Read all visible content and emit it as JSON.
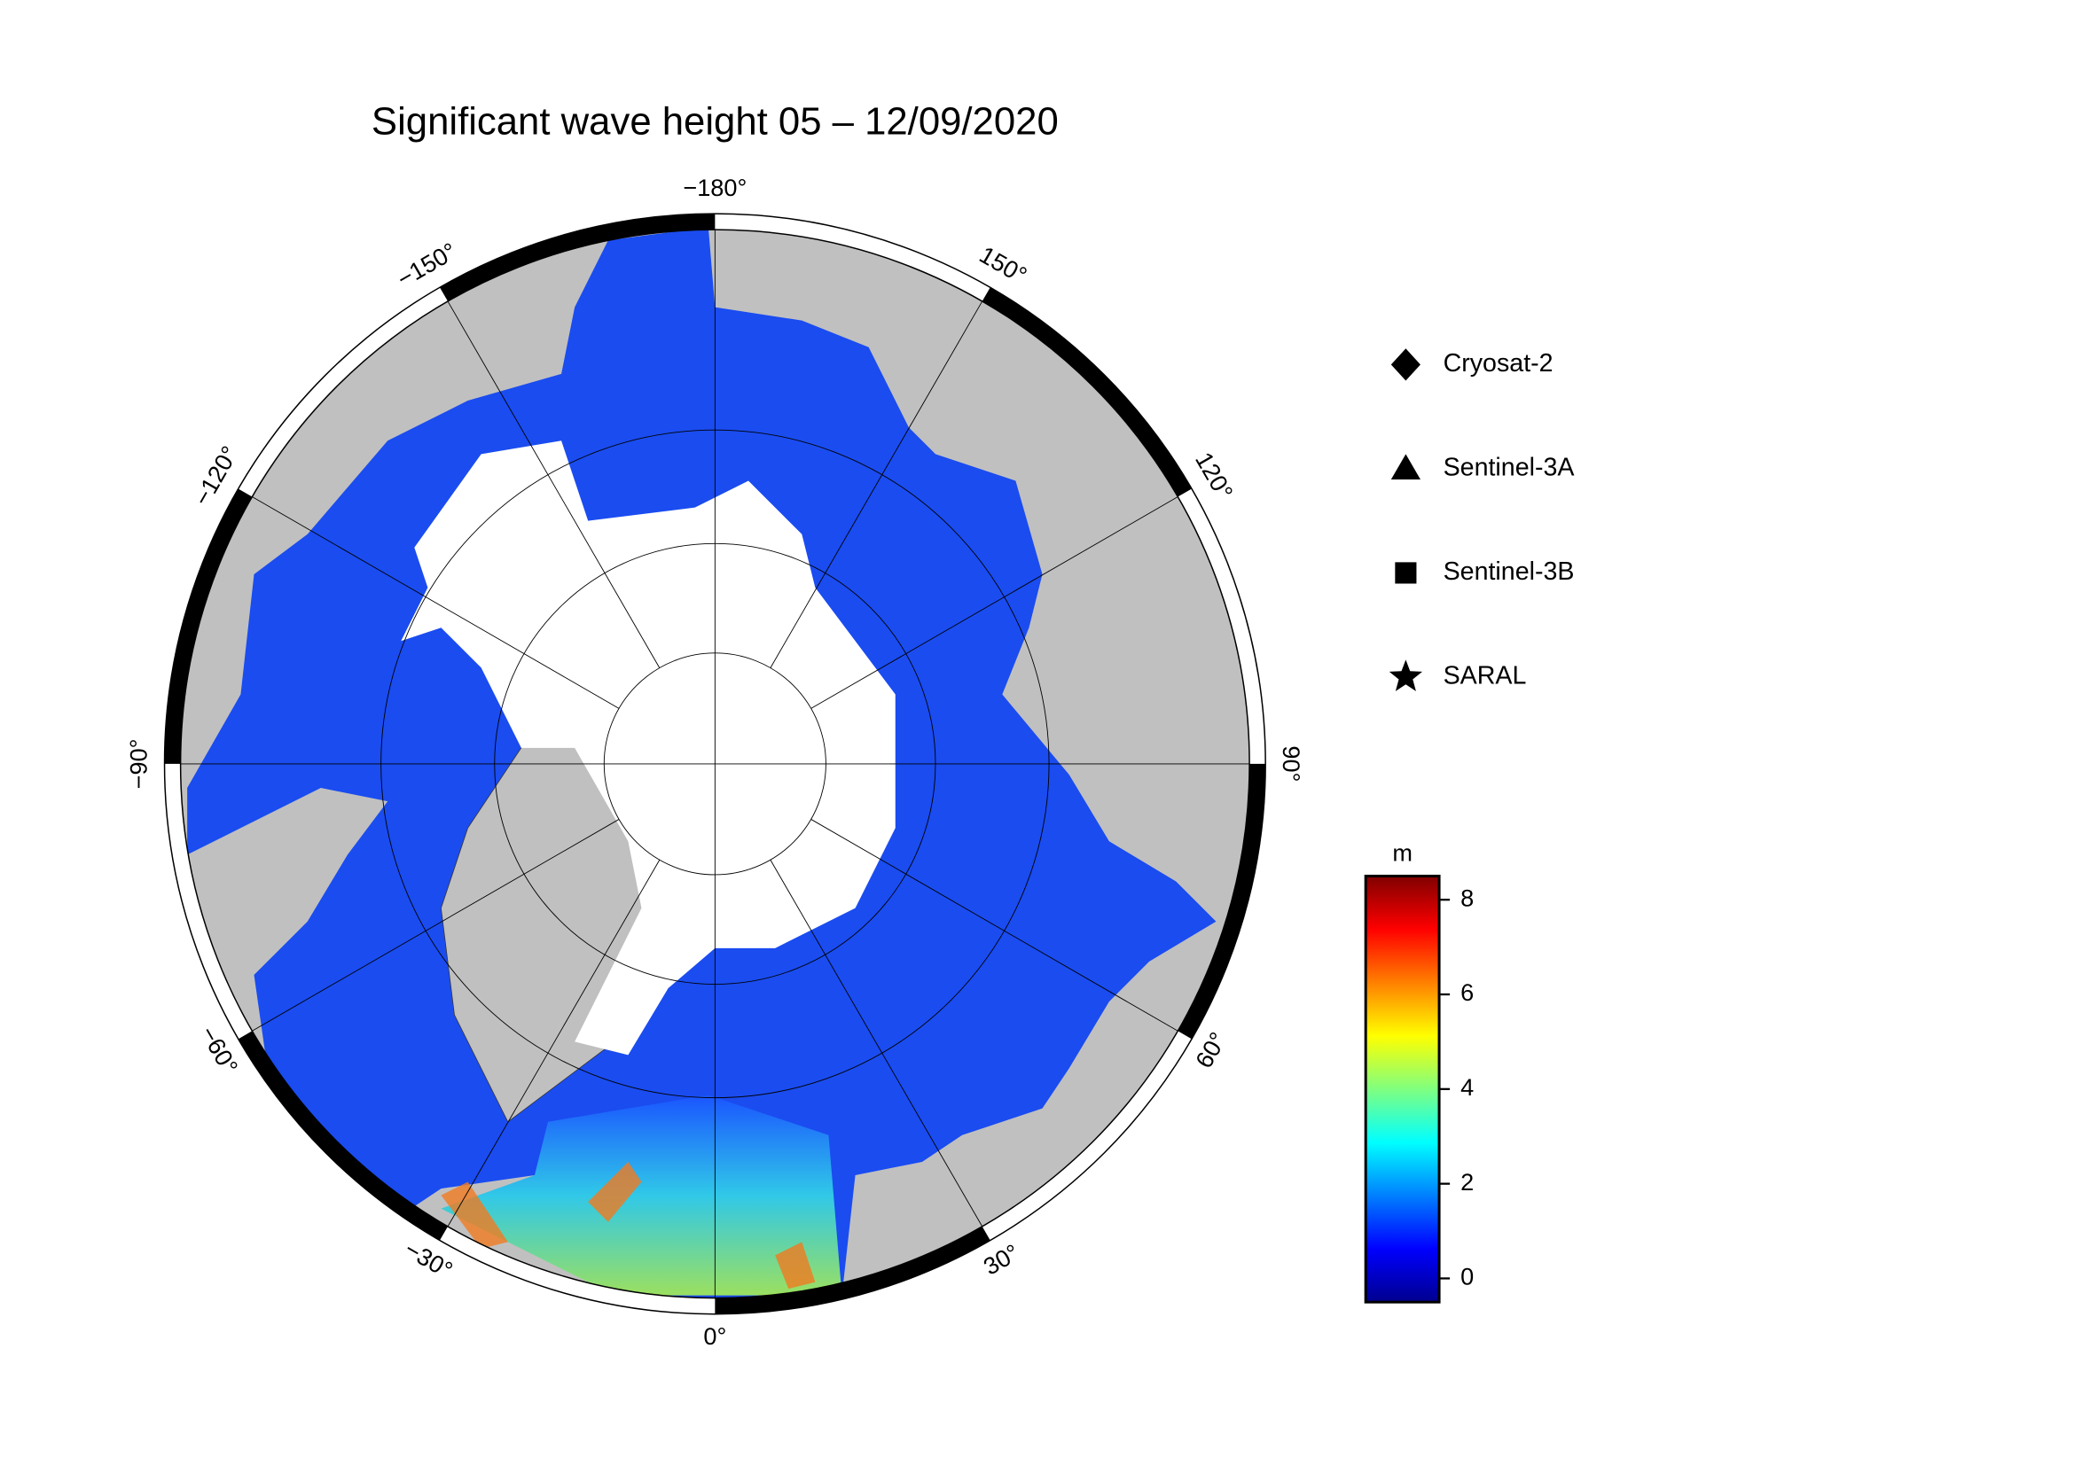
{
  "title": "Significant wave height 05 – 12/09/2020",
  "longitudes": [
    {
      "value": -180,
      "label": "−180°"
    },
    {
      "value": 150,
      "label": "150°"
    },
    {
      "value": 120,
      "label": "120°"
    },
    {
      "value": 90,
      "label": "90°"
    },
    {
      "value": 60,
      "label": "60°"
    },
    {
      "value": 30,
      "label": "30°"
    },
    {
      "value": 0,
      "label": "0°"
    },
    {
      "value": -30,
      "label": "−30°"
    },
    {
      "value": -60,
      "label": "−60°"
    },
    {
      "value": -90,
      "label": "−90°"
    },
    {
      "value": -120,
      "label": "−120°"
    },
    {
      "value": -150,
      "label": "−150°"
    }
  ],
  "legend": [
    {
      "label": "Cryosat-2",
      "marker": "diamond"
    },
    {
      "label": "Sentinel-3A",
      "marker": "triangle"
    },
    {
      "label": "Sentinel-3B",
      "marker": "square"
    },
    {
      "label": "SARAL",
      "marker": "star"
    }
  ],
  "colorbar": {
    "label": "m",
    "clim": [
      -0.5,
      8.5
    ],
    "ticks": [
      0,
      2,
      4,
      6,
      8
    ],
    "colormap": "jet"
  }
}
